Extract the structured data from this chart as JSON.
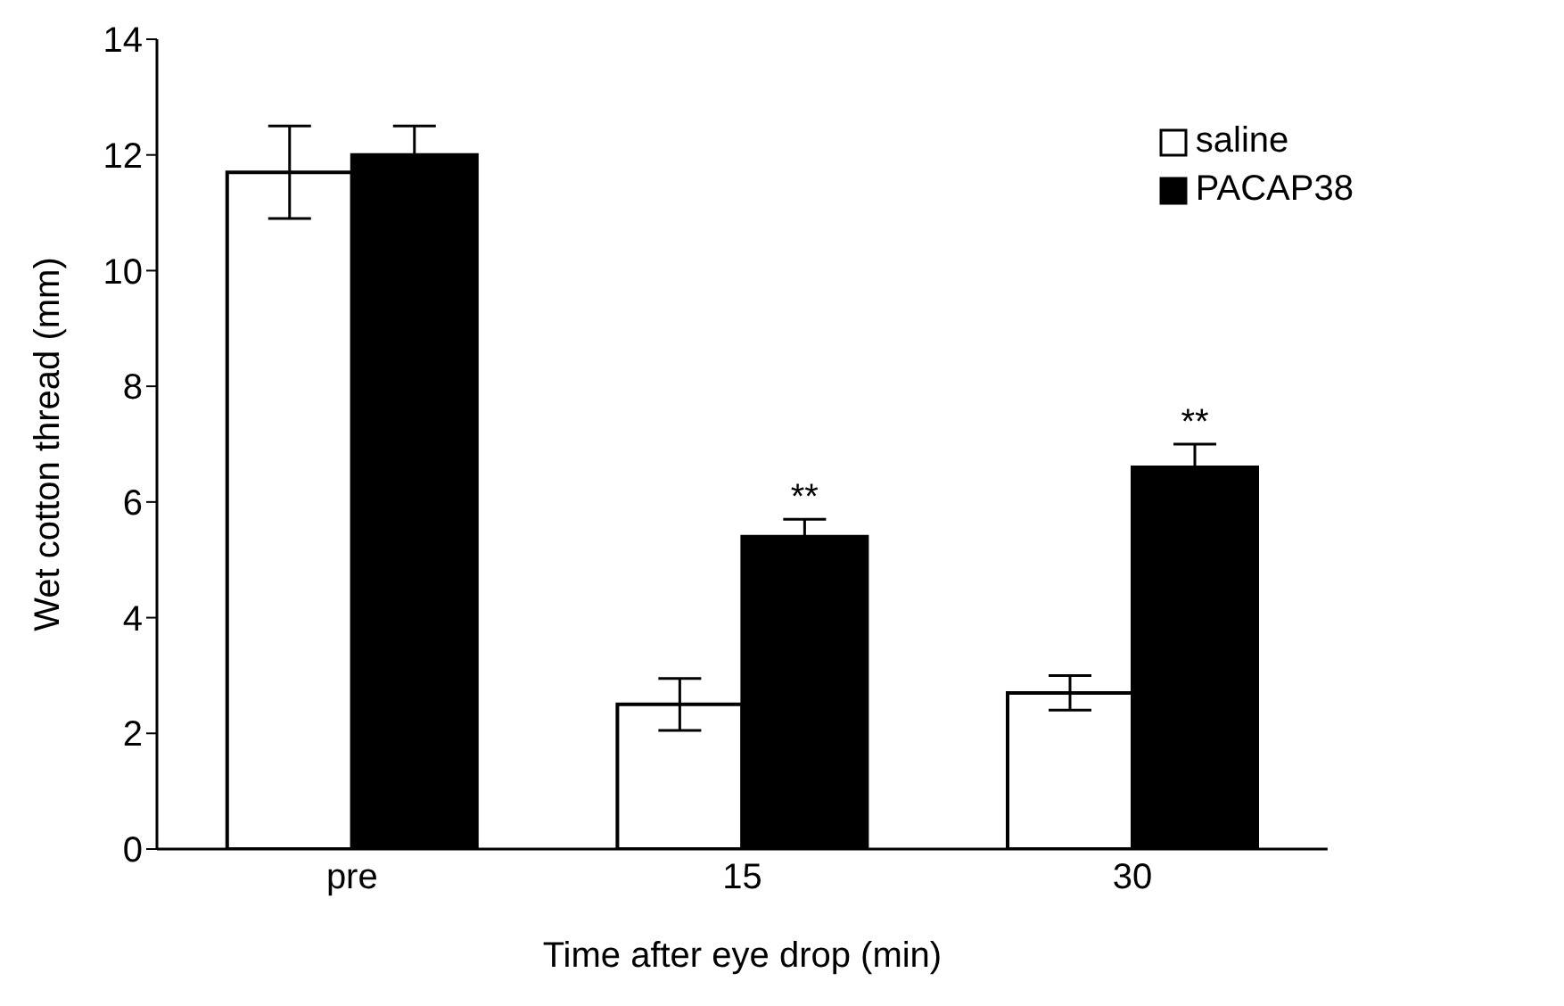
{
  "chart_data": {
    "type": "bar",
    "xlabel": "Time after eye drop (min)",
    "ylabel": "Wet cotton thread (mm)",
    "categories": [
      "pre",
      "15",
      "30"
    ],
    "series": [
      {
        "name": "saline",
        "color": "#ffffff",
        "values": [
          11.7,
          2.5,
          2.7
        ],
        "errors": [
          0.8,
          0.45,
          0.3
        ]
      },
      {
        "name": "PACAP38",
        "color": "#000000",
        "values": [
          12.0,
          5.4,
          6.6
        ],
        "errors": [
          0.5,
          0.3,
          0.4
        ]
      }
    ],
    "ylim": [
      0,
      14
    ],
    "yticks": [
      0,
      2,
      4,
      6,
      8,
      10,
      12,
      14
    ],
    "grid": false,
    "legend": "top right",
    "annotations": [
      {
        "text": "**",
        "x": "15",
        "y": 5.4
      },
      {
        "text": "**",
        "x": "30",
        "y": 6.6
      }
    ]
  }
}
